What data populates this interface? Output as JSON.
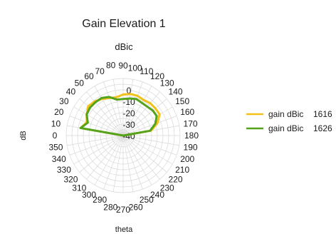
{
  "chart_data": {
    "type": "polar-line",
    "title": "Gain Elevation 1",
    "radial_axis_label": "dBic",
    "angular_axis_label": "theta",
    "side_label": "dB",
    "radial_ticks": [
      0,
      -10,
      -20,
      -30,
      -40
    ],
    "r_range": [
      -40,
      10
    ],
    "angle_ticks": [
      0,
      10,
      20,
      30,
      40,
      50,
      60,
      70,
      80,
      90,
      100,
      110,
      120,
      130,
      140,
      150,
      160,
      170,
      180,
      190,
      200,
      210,
      220,
      230,
      240,
      250,
      260,
      270,
      280,
      290,
      300,
      310,
      320,
      330,
      340,
      350
    ],
    "grid": true,
    "legend_position": "right",
    "series": [
      {
        "name": "gain dBic 1616",
        "color": "#f2c21a",
        "points": [
          [
            0,
            -40
          ],
          [
            10,
            -2
          ],
          [
            20,
            -6
          ],
          [
            30,
            -3
          ],
          [
            40,
            0
          ],
          [
            50,
            -1
          ],
          [
            60,
            -3
          ],
          [
            70,
            -5
          ],
          [
            80,
            -6
          ],
          [
            90,
            -4
          ],
          [
            100,
            -3
          ],
          [
            110,
            -3
          ],
          [
            120,
            -4
          ],
          [
            130,
            -3
          ],
          [
            140,
            -3
          ],
          [
            150,
            -3
          ],
          [
            160,
            -8
          ],
          [
            170,
            -15
          ],
          [
            180,
            -40
          ],
          [
            270,
            -40
          ],
          [
            360,
            -40
          ]
        ]
      },
      {
        "name": "gain dBic 1626",
        "color": "#55a31d",
        "points": [
          [
            0,
            -40
          ],
          [
            10,
            -2
          ],
          [
            20,
            -7
          ],
          [
            30,
            -3
          ],
          [
            40,
            -2
          ],
          [
            50,
            -2
          ],
          [
            60,
            -2
          ],
          [
            70,
            -4
          ],
          [
            80,
            -8
          ],
          [
            90,
            -8
          ],
          [
            100,
            -7
          ],
          [
            110,
            -6
          ],
          [
            120,
            -7
          ],
          [
            130,
            -7
          ],
          [
            140,
            -6
          ],
          [
            150,
            -6
          ],
          [
            160,
            -10
          ],
          [
            170,
            -16
          ],
          [
            180,
            -40
          ],
          [
            270,
            -40
          ],
          [
            360,
            -40
          ]
        ]
      }
    ]
  }
}
